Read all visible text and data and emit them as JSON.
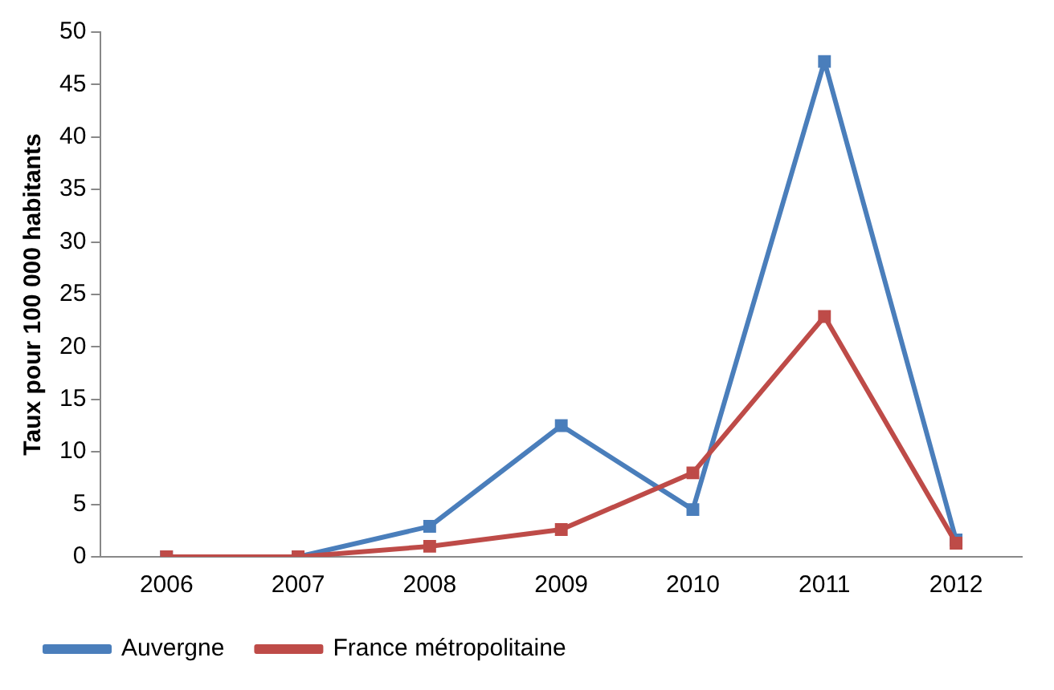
{
  "chart_data": {
    "type": "line",
    "ylabel": "Taux pour 100 000 habitants",
    "categories": [
      "2006",
      "2007",
      "2008",
      "2009",
      "2010",
      "2011",
      "2012"
    ],
    "series": [
      {
        "name": "Auvergne",
        "color": "#4a7ebb",
        "values": [
          0,
          0,
          2.9,
          12.5,
          4.5,
          47.2,
          1.6
        ]
      },
      {
        "name": "France métropolitaine",
        "color": "#be4b48",
        "values": [
          0,
          0,
          1,
          2.6,
          8,
          22.9,
          1.3
        ]
      }
    ],
    "ylim": [
      0,
      50
    ],
    "yticks": [
      0,
      5,
      10,
      15,
      20,
      25,
      30,
      35,
      40,
      45,
      50
    ],
    "grid": false,
    "legend": "bottom",
    "marker": "square",
    "line_style": "solid"
  }
}
